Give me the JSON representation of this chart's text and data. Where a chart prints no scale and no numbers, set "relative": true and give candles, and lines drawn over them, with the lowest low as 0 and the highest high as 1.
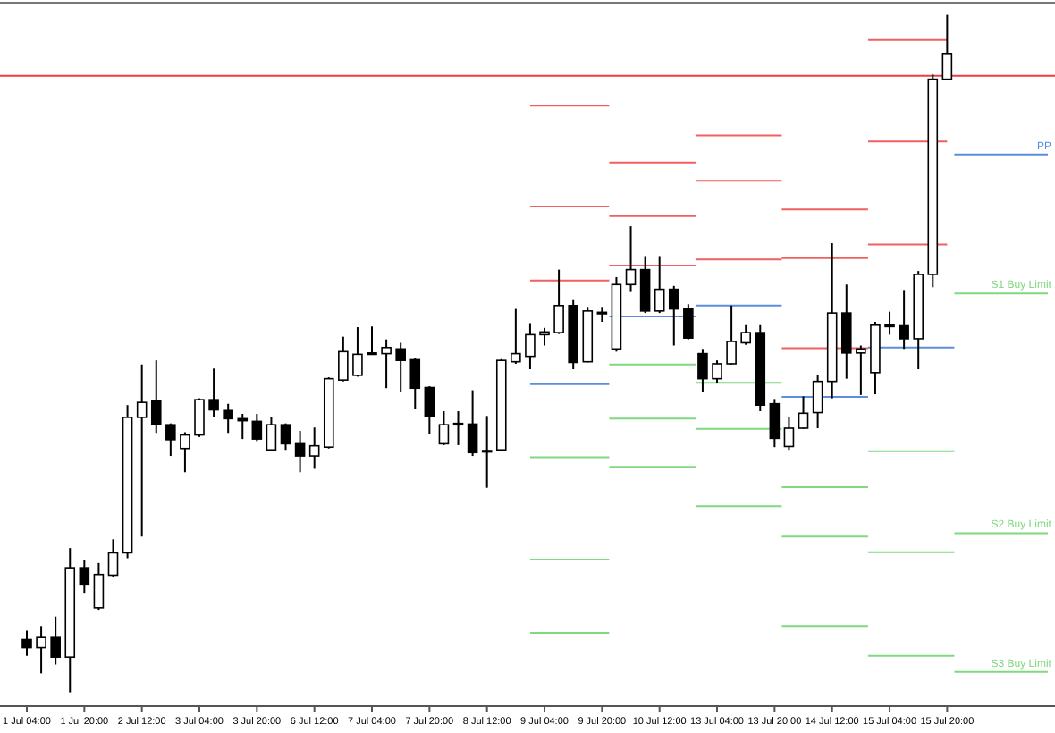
{
  "chart_data": {
    "type": "candlestick",
    "relative": true,
    "legend": false,
    "categories": [
      "1 Jul 04:00",
      null,
      null,
      null,
      "1 Jul 20:00",
      null,
      null,
      null,
      "2 Jul 12:00",
      null,
      null,
      null,
      "3 Jul 04:00",
      null,
      null,
      null,
      "3 Jul 20:00",
      null,
      null,
      null,
      "6 Jul 12:00",
      null,
      null,
      null,
      "7 Jul 04:00",
      null,
      null,
      null,
      "7 Jul 20:00",
      null,
      null,
      null,
      "8 Jul 12:00",
      null,
      null,
      null,
      "9 Jul 04:00",
      null,
      null,
      null,
      "9 Jul 20:00",
      null,
      null,
      null,
      "10 Jul 12:00",
      null,
      null,
      null,
      "13 Jul 04:00",
      null,
      null,
      null,
      "13 Jul 20:00",
      null,
      null,
      null,
      "14 Jul 12:00",
      null,
      null,
      null,
      "15 Jul 04:00",
      null,
      null,
      null,
      "15 Jul 20:00",
      null,
      null,
      null,
      null,
      null,
      null,
      null
    ],
    "ohlc": [
      [
        0.078,
        0.091,
        0.054,
        0.066
      ],
      [
        0.066,
        0.098,
        0.028,
        0.081
      ],
      [
        0.081,
        0.112,
        0.041,
        0.052
      ],
      [
        0.052,
        0.213,
        0,
        0.184
      ],
      [
        0.184,
        0.195,
        0.147,
        0.16
      ],
      [
        0.125,
        0.191,
        0.122,
        0.174
      ],
      [
        0.173,
        0.226,
        0.17,
        0.206
      ],
      [
        0.206,
        0.424,
        0.198,
        0.406
      ],
      [
        0.406,
        0.484,
        0.23,
        0.428
      ],
      [
        0.431,
        0.49,
        0.383,
        0.396
      ],
      [
        0.395,
        0.397,
        0.349,
        0.373
      ],
      [
        0.36,
        0.384,
        0.325,
        0.38
      ],
      [
        0.38,
        0.434,
        0.377,
        0.432
      ],
      [
        0.432,
        0.478,
        0.406,
        0.417
      ],
      [
        0.416,
        0.426,
        0.383,
        0.404
      ],
      [
        0.404,
        0.411,
        0.374,
        0.401
      ],
      [
        0.4,
        0.411,
        0.371,
        0.374
      ],
      [
        0.358,
        0.406,
        0.356,
        0.395
      ],
      [
        0.395,
        0.397,
        0.358,
        0.367
      ],
      [
        0.367,
        0.386,
        0.325,
        0.349
      ],
      [
        0.349,
        0.391,
        0.33,
        0.364
      ],
      [
        0.362,
        0.465,
        0.36,
        0.463
      ],
      [
        0.461,
        0.525,
        0.459,
        0.503
      ],
      [
        0.468,
        0.539,
        0.466,
        0.499
      ],
      [
        0.499,
        0.54,
        0.499,
        0.501
      ],
      [
        0.5,
        0.521,
        0.449,
        0.509
      ],
      [
        0.507,
        0.516,
        0.443,
        0.49
      ],
      [
        0.491,
        0.494,
        0.418,
        0.449
      ],
      [
        0.45,
        0.452,
        0.382,
        0.408
      ],
      [
        0.367,
        0.415,
        0.365,
        0.395
      ],
      [
        0.395,
        0.415,
        0.365,
        0.397
      ],
      [
        0.396,
        0.446,
        0.349,
        0.354
      ],
      [
        0.357,
        0.408,
        0.302,
        0.355
      ],
      [
        0.358,
        0.492,
        0.357,
        0.49
      ],
      [
        0.488,
        0.566,
        0.485,
        0.5
      ],
      [
        0.496,
        0.545,
        0.477,
        0.528
      ],
      [
        0.528,
        0.538,
        0.512,
        0.532
      ],
      [
        0.531,
        0.624,
        0.529,
        0.571
      ],
      [
        0.571,
        0.579,
        0.477,
        0.487
      ],
      [
        0.488,
        0.569,
        0.487,
        0.563
      ],
      [
        0.561,
        0.569,
        0.547,
        0.559
      ],
      [
        0.507,
        0.613,
        0.503,
        0.602
      ],
      [
        0.602,
        0.688,
        0.591,
        0.624
      ],
      [
        0.624,
        0.644,
        0.56,
        0.563
      ],
      [
        0.563,
        0.644,
        0.56,
        0.595
      ],
      [
        0.595,
        0.6,
        0.512,
        0.566
      ],
      [
        0.566,
        0.573,
        0.521,
        0.523
      ],
      [
        0.5,
        0.507,
        0.443,
        0.463
      ],
      [
        0.463,
        0.49,
        0.456,
        0.485
      ],
      [
        0.485,
        0.571,
        0.484,
        0.518
      ],
      [
        0.516,
        0.542,
        0.513,
        0.531
      ],
      [
        0.531,
        0.542,
        0.415,
        0.424
      ],
      [
        0.426,
        0.433,
        0.362,
        0.375
      ],
      [
        0.363,
        0.406,
        0.358,
        0.39
      ],
      [
        0.39,
        0.437,
        0.389,
        0.412
      ],
      [
        0.413,
        0.468,
        0.39,
        0.459
      ],
      [
        0.459,
        0.663,
        0.434,
        0.56
      ],
      [
        0.56,
        0.602,
        0.463,
        0.501
      ],
      [
        0.501,
        0.512,
        0.439,
        0.507
      ],
      [
        0.472,
        0.547,
        0.44,
        0.542
      ],
      [
        0.542,
        0.562,
        0.528,
        0.54
      ],
      [
        0.541,
        0.594,
        0.507,
        0.522
      ],
      [
        0.522,
        0.622,
        0.477,
        0.617
      ],
      [
        0.617,
        0.912,
        0.598,
        0.905
      ],
      [
        0.905,
        1,
        0.905,
        0.943
      ],
      null,
      null,
      null,
      null,
      null,
      null,
      null
    ],
    "series": [
      {
        "type": "step",
        "color": "#f06060",
        "values": [
          null,
          null,
          null,
          null,
          null,
          null,
          null,
          null,
          null,
          null,
          null,
          null,
          null,
          null,
          null,
          null,
          null,
          null,
          null,
          null,
          null,
          null,
          null,
          null,
          null,
          null,
          null,
          null,
          null,
          null,
          null,
          null,
          null,
          null,
          null,
          0.866,
          0.866,
          0.866,
          0.866,
          0.866,
          0.866,
          0.782,
          0.782,
          0.782,
          0.782,
          0.782,
          0.782,
          0.822,
          0.822,
          0.822,
          0.822,
          0.822,
          0.822,
          0.713,
          0.713,
          0.713,
          0.713,
          0.713,
          0.713,
          0.963,
          0.963,
          0.963,
          0.963,
          0.963,
          0.963,
          null,
          null,
          null,
          null,
          null,
          null,
          null
        ]
      },
      {
        "type": "step",
        "color": "#f06060",
        "values": [
          null,
          null,
          null,
          null,
          null,
          null,
          null,
          null,
          null,
          null,
          null,
          null,
          null,
          null,
          null,
          null,
          null,
          null,
          null,
          null,
          null,
          null,
          null,
          null,
          null,
          null,
          null,
          null,
          null,
          null,
          null,
          null,
          null,
          null,
          null,
          0.717,
          0.717,
          0.717,
          0.717,
          0.717,
          0.717,
          0.703,
          0.703,
          0.703,
          0.703,
          0.703,
          0.703,
          0.755,
          0.755,
          0.755,
          0.755,
          0.755,
          0.755,
          0.641,
          0.641,
          0.641,
          0.641,
          0.641,
          0.641,
          0.813,
          0.813,
          0.813,
          0.813,
          0.813,
          0.813,
          null,
          null,
          null,
          null,
          null,
          null,
          null
        ]
      },
      {
        "type": "step",
        "color": "#f06060",
        "values": [
          null,
          null,
          null,
          null,
          null,
          null,
          null,
          null,
          null,
          null,
          null,
          null,
          null,
          null,
          null,
          null,
          null,
          null,
          null,
          null,
          null,
          null,
          null,
          null,
          null,
          null,
          null,
          null,
          null,
          null,
          null,
          null,
          null,
          null,
          null,
          0.608,
          0.608,
          0.608,
          0.608,
          0.608,
          0.608,
          0.63,
          0.63,
          0.63,
          0.63,
          0.63,
          0.63,
          0.639,
          0.639,
          0.639,
          0.639,
          0.639,
          0.639,
          0.508,
          0.508,
          0.508,
          0.508,
          0.508,
          0.508,
          0.661,
          0.661,
          0.661,
          0.661,
          0.661,
          0.661,
          null,
          null,
          null,
          null,
          null,
          null,
          null
        ]
      },
      {
        "type": "step",
        "name": "PP",
        "color": "#5b8ee0",
        "values": [
          null,
          null,
          null,
          null,
          null,
          null,
          null,
          null,
          null,
          null,
          null,
          null,
          null,
          null,
          null,
          null,
          null,
          null,
          null,
          null,
          null,
          null,
          null,
          null,
          null,
          null,
          null,
          null,
          null,
          null,
          null,
          null,
          null,
          null,
          null,
          0.455,
          0.455,
          0.455,
          0.455,
          0.455,
          0.455,
          0.555,
          0.555,
          0.555,
          0.555,
          0.555,
          0.555,
          0.571,
          0.571,
          0.571,
          0.571,
          0.571,
          0.571,
          0.436,
          0.436,
          0.436,
          0.436,
          0.436,
          0.436,
          0.509,
          0.509,
          0.509,
          0.509,
          0.509,
          0.509,
          0.794,
          0.794,
          0.794,
          0.794,
          0.794,
          0.794,
          0.794
        ]
      },
      {
        "type": "step",
        "name": "S1 Buy Limit",
        "color": "#80d880",
        "values": [
          null,
          null,
          null,
          null,
          null,
          null,
          null,
          null,
          null,
          null,
          null,
          null,
          null,
          null,
          null,
          null,
          null,
          null,
          null,
          null,
          null,
          null,
          null,
          null,
          null,
          null,
          null,
          null,
          null,
          null,
          null,
          null,
          null,
          null,
          null,
          0.347,
          0.347,
          0.347,
          0.347,
          0.347,
          0.347,
          0.484,
          0.484,
          0.484,
          0.484,
          0.484,
          0.484,
          0.457,
          0.457,
          0.457,
          0.457,
          0.457,
          0.457,
          0.303,
          0.303,
          0.303,
          0.303,
          0.303,
          0.303,
          0.356,
          0.356,
          0.356,
          0.356,
          0.356,
          0.356,
          0.589,
          0.589,
          0.589,
          0.589,
          0.589,
          0.589,
          0.589
        ]
      },
      {
        "type": "step",
        "name": "S2 Buy Limit",
        "color": "#80d880",
        "values": [
          null,
          null,
          null,
          null,
          null,
          null,
          null,
          null,
          null,
          null,
          null,
          null,
          null,
          null,
          null,
          null,
          null,
          null,
          null,
          null,
          null,
          null,
          null,
          null,
          null,
          null,
          null,
          null,
          null,
          null,
          null,
          null,
          null,
          null,
          null,
          0.196,
          0.196,
          0.196,
          0.196,
          0.196,
          0.196,
          0.404,
          0.404,
          0.404,
          0.404,
          0.404,
          0.404,
          0.389,
          0.389,
          0.389,
          0.389,
          0.389,
          0.389,
          0.23,
          0.23,
          0.23,
          0.23,
          0.23,
          0.23,
          0.207,
          0.207,
          0.207,
          0.207,
          0.207,
          0.207,
          0.235,
          0.235,
          0.235,
          0.235,
          0.235,
          0.235,
          0.235
        ]
      },
      {
        "type": "step",
        "name": "S3 Buy Limit",
        "color": "#80d880",
        "values": [
          null,
          null,
          null,
          null,
          null,
          null,
          null,
          null,
          null,
          null,
          null,
          null,
          null,
          null,
          null,
          null,
          null,
          null,
          null,
          null,
          null,
          null,
          null,
          null,
          null,
          null,
          null,
          null,
          null,
          null,
          null,
          null,
          null,
          null,
          null,
          0.088,
          0.088,
          0.088,
          0.088,
          0.088,
          0.088,
          0.333,
          0.333,
          0.333,
          0.333,
          0.333,
          0.333,
          0.275,
          0.275,
          0.275,
          0.275,
          0.275,
          0.275,
          0.098,
          0.098,
          0.098,
          0.098,
          0.098,
          0.098,
          0.054,
          0.054,
          0.054,
          0.054,
          0.054,
          0.054,
          0.03,
          0.03,
          0.03,
          0.03,
          0.03,
          0.03,
          0.03
        ]
      }
    ],
    "ref_lines": [
      {
        "axis": "y",
        "value": 0.91,
        "color": "#e84040"
      }
    ]
  }
}
